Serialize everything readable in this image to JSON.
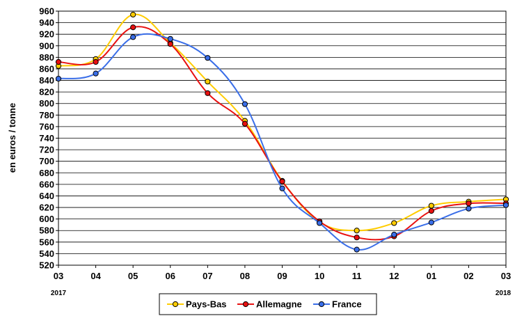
{
  "chart_data": {
    "type": "line",
    "ylabel": "en euros / tonne",
    "categories": [
      "03",
      "04",
      "05",
      "06",
      "07",
      "08",
      "09",
      "10",
      "11",
      "12",
      "01",
      "02",
      "03"
    ],
    "year_labels": {
      "start": "2017",
      "end": "2018"
    },
    "ylim": [
      520,
      960
    ],
    "ytick_step": 20,
    "grid": true,
    "legend_position": "bottom",
    "series": [
      {
        "name": "Pays-Bas",
        "color": "#FFCC00",
        "values": [
          865,
          877,
          954,
          905,
          838,
          770,
          666,
          595,
          580,
          593,
          623,
          630,
          634
        ]
      },
      {
        "name": "Allemagne",
        "color": "#E81010",
        "values": [
          872,
          872,
          932,
          903,
          818,
          765,
          665,
          596,
          568,
          570,
          614,
          627,
          627
        ]
      },
      {
        "name": "France",
        "color": "#3A6EE8",
        "values": [
          843,
          852,
          915,
          912,
          879,
          799,
          653,
          593,
          547,
          573,
          594,
          618,
          624
        ]
      }
    ]
  }
}
